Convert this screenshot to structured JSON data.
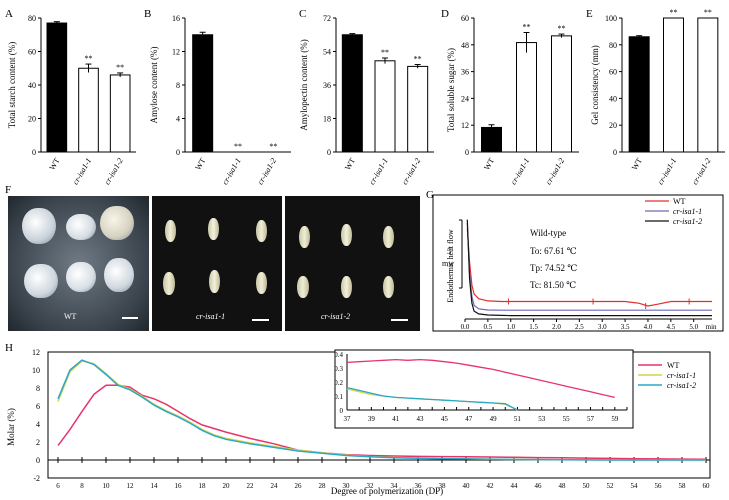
{
  "panels": {
    "A": {
      "letter": "A",
      "ylabel": "Total starch content (%)",
      "yticks": [
        "0",
        "20",
        "40",
        "60",
        "80"
      ],
      "xticks": [
        "WT",
        "cr-isa1-1",
        "cr-isa1-2"
      ],
      "sig": [
        "",
        "**",
        "**"
      ]
    },
    "B": {
      "letter": "B",
      "ylabel": "Amylose content (%)",
      "yticks": [
        "0",
        "4",
        "8",
        "12",
        "16"
      ],
      "xticks": [
        "WT",
        "cr-isa1-1",
        "cr-isa1-2"
      ],
      "sig": [
        "",
        "**",
        "**"
      ]
    },
    "C": {
      "letter": "C",
      "ylabel": "Amylopectin content (%)",
      "yticks": [
        "0",
        "18",
        "36",
        "54",
        "72"
      ],
      "xticks": [
        "WT",
        "cr-isa1-1",
        "cr-isa1-2"
      ],
      "sig": [
        "",
        "**",
        "**"
      ]
    },
    "D": {
      "letter": "D",
      "ylabel": "Total soluble sugar (%)",
      "yticks": [
        "0",
        "12",
        "24",
        "36",
        "48",
        "60"
      ],
      "xticks": [
        "WT",
        "cr-isa1-1",
        "cr-isa1-2"
      ],
      "sig": [
        "",
        "**",
        "**"
      ]
    },
    "E": {
      "letter": "E",
      "ylabel": "Gel consistency (mm)",
      "yticks": [
        "0",
        "20",
        "40",
        "60",
        "80",
        "100"
      ],
      "xticks": [
        "WT",
        "cr-isa1-1",
        "cr-isa1-2"
      ],
      "sig": [
        "",
        "**",
        "**"
      ]
    },
    "F": {
      "letter": "F",
      "captions": [
        "WT",
        "cr-isa1-1",
        "cr-isa1-2"
      ]
    },
    "G": {
      "letter": "G",
      "ylabel": "Endothermic heat flow",
      "scale_label": "5",
      "scale_unit": "mw",
      "annotation": {
        "title": "Wild-type",
        "to": "To: 67.61 ℃",
        "tp": "Tp: 74.52 ℃",
        "tc": "Tc: 81.50 ℃"
      },
      "xticks": [
        "0.0",
        "0.5",
        "1.0",
        "1.5",
        "2.0",
        "2.5",
        "3.0",
        "3.5",
        "4.0",
        "4.5",
        "5.0",
        "min"
      ],
      "legend": [
        "WT",
        "cr-isa1-1",
        "cr-isa1-2"
      ]
    },
    "H": {
      "letter": "H",
      "ylabel": "Molar (%)",
      "xlabel": "Degree of polymerization (DP)",
      "yticks": [
        "-2",
        "0",
        "2",
        "4",
        "6",
        "8",
        "10",
        "12"
      ],
      "xticks": [
        "6",
        "8",
        "10",
        "12",
        "14",
        "16",
        "18",
        "20",
        "22",
        "24",
        "26",
        "28",
        "30",
        "32",
        "34",
        "36",
        "38",
        "40",
        "42",
        "44",
        "46",
        "48",
        "50",
        "52",
        "54",
        "56",
        "58",
        "60"
      ],
      "inset_yticks": [
        "0",
        "0.1",
        "0.2",
        "0.3",
        "0.4"
      ],
      "inset_xticks": [
        "37",
        "39",
        "41",
        "43",
        "45",
        "47",
        "49",
        "51",
        "53",
        "55",
        "57",
        "59"
      ],
      "legend": [
        "WT",
        "cr-isa1-1",
        "cr-isa1-2"
      ]
    }
  },
  "colors": {
    "wt": "#e8336b",
    "isa1": "#d4d44a",
    "isa2": "#2aa7c9",
    "g_wt": "#e0302c",
    "g_isa1": "#6e6ab8",
    "g_isa2": "#111111"
  },
  "chart_data": [
    {
      "type": "bar",
      "title": "",
      "categories": [
        "WT",
        "cr-isa1-1",
        "cr-isa1-2"
      ],
      "values": [
        77,
        50,
        46
      ],
      "errors": [
        0.8,
        2.5,
        1.2
      ],
      "ylabel": "Total starch content (%)",
      "ylim": [
        0,
        80
      ],
      "fills": [
        "#000000",
        "#ffffff",
        "#ffffff"
      ]
    },
    {
      "type": "bar",
      "title": "",
      "categories": [
        "WT",
        "cr-isa1-1",
        "cr-isa1-2"
      ],
      "values": [
        14,
        0,
        0
      ],
      "errors": [
        0.3,
        0,
        0
      ],
      "ylabel": "Amylose content (%)",
      "ylim": [
        0,
        16
      ],
      "fills": [
        "#000000",
        "#ffffff",
        "#ffffff"
      ]
    },
    {
      "type": "bar",
      "title": "",
      "categories": [
        "WT",
        "cr-isa1-1",
        "cr-isa1-2"
      ],
      "values": [
        63,
        49,
        46
      ],
      "errors": [
        0.6,
        1.5,
        1.0
      ],
      "ylabel": "Amylopectin content (%)",
      "ylim": [
        0,
        72
      ],
      "fills": [
        "#000000",
        "#ffffff",
        "#ffffff"
      ]
    },
    {
      "type": "bar",
      "title": "",
      "categories": [
        "WT",
        "cr-isa1-1",
        "cr-isa1-2"
      ],
      "values": [
        11,
        49,
        52
      ],
      "errors": [
        1.2,
        4.5,
        0.8
      ],
      "ylabel": "Total soluble sugar (%)",
      "ylim": [
        0,
        60
      ],
      "fills": [
        "#000000",
        "#ffffff",
        "#ffffff"
      ]
    },
    {
      "type": "bar",
      "title": "",
      "categories": [
        "WT",
        "cr-isa1-1",
        "cr-isa1-2"
      ],
      "values": [
        86,
        100,
        100
      ],
      "errors": [
        0.8,
        0,
        0
      ],
      "ylabel": "Gel consistency (mm)",
      "ylim": [
        0,
        100
      ],
      "fills": [
        "#000000",
        "#ffffff",
        "#ffffff"
      ]
    },
    {
      "type": "line",
      "xlabel": "min",
      "ylabel": "Endothermic heat flow",
      "xlim": [
        0,
        5.4
      ],
      "ylim": [
        0,
        10
      ],
      "series": [
        {
          "name": "WT",
          "x": [
            0.05,
            0.1,
            0.15,
            0.2,
            0.3,
            0.5,
            0.8,
            1.0,
            1.5,
            2.0,
            2.5,
            3.0,
            3.5,
            3.8,
            4.0,
            4.2,
            4.5,
            5.0,
            5.4
          ],
          "y": [
            8.0,
            5.0,
            3.0,
            2.2,
            1.8,
            1.6,
            1.55,
            1.55,
            1.55,
            1.55,
            1.55,
            1.55,
            1.55,
            1.4,
            1.15,
            1.3,
            1.55,
            1.55,
            1.55
          ]
        },
        {
          "name": "cr-isa1-1",
          "x": [
            0.05,
            0.1,
            0.15,
            0.2,
            0.3,
            0.5,
            0.8,
            1.0,
            2.0,
            3.0,
            4.0,
            5.0,
            5.4
          ],
          "y": [
            8.5,
            4.0,
            2.0,
            1.2,
            0.9,
            0.8,
            0.78,
            0.78,
            0.78,
            0.78,
            0.78,
            0.78,
            0.78
          ]
        },
        {
          "name": "cr-isa1-2",
          "x": [
            0.05,
            0.1,
            0.15,
            0.2,
            0.3,
            0.5,
            0.8,
            1.0,
            2.0,
            3.0,
            4.0,
            5.0,
            5.4
          ],
          "y": [
            8.8,
            3.5,
            1.4,
            0.7,
            0.45,
            0.35,
            0.32,
            0.3,
            0.3,
            0.3,
            0.3,
            0.3,
            0.3
          ]
        }
      ]
    },
    {
      "type": "line",
      "xlabel": "Degree of polymerization (DP)",
      "ylabel": "Molar (%)",
      "xlim": [
        6,
        60
      ],
      "ylim": [
        -2,
        12
      ],
      "series": [
        {
          "name": "WT",
          "x": [
            6,
            7,
            8,
            9,
            10,
            11,
            12,
            13,
            14,
            15,
            16,
            17,
            18,
            19,
            20,
            22,
            24,
            26,
            28,
            30,
            32,
            34,
            36,
            38,
            40,
            42,
            44,
            46,
            48,
            50,
            52,
            54,
            56,
            58,
            60
          ],
          "y": [
            1.6,
            3.4,
            5.4,
            7.3,
            8.3,
            8.3,
            8.1,
            7.2,
            6.8,
            6.2,
            5.4,
            4.6,
            3.9,
            3.5,
            3.1,
            2.4,
            1.8,
            1.1,
            0.8,
            0.6,
            0.5,
            0.45,
            0.4,
            0.38,
            0.36,
            0.33,
            0.3,
            0.27,
            0.24,
            0.21,
            0.18,
            0.15,
            0.12,
            0.1,
            0.08
          ]
        },
        {
          "name": "cr-isa1-1",
          "x": [
            6,
            7,
            8,
            9,
            10,
            11,
            12,
            13,
            14,
            15,
            16,
            17,
            18,
            19,
            20,
            22,
            24,
            26,
            28,
            30,
            32,
            34,
            36,
            38,
            40,
            42,
            44,
            46,
            48,
            50,
            52,
            54,
            56,
            58,
            60
          ],
          "y": [
            6.5,
            9.8,
            11.0,
            10.7,
            9.6,
            8.4,
            7.9,
            7.1,
            6.2,
            5.5,
            4.9,
            4.2,
            3.4,
            2.8,
            2.4,
            1.9,
            1.5,
            1.1,
            0.8,
            0.55,
            0.38,
            0.28,
            0.22,
            0.16,
            0.13,
            0.1,
            0.07,
            0.05,
            0.03,
            0.01,
            0.0,
            0.0,
            0.0,
            0.0,
            0.0
          ]
        },
        {
          "name": "cr-isa1-2",
          "x": [
            6,
            7,
            8,
            9,
            10,
            11,
            12,
            13,
            14,
            15,
            16,
            17,
            18,
            19,
            20,
            22,
            24,
            26,
            28,
            30,
            32,
            34,
            36,
            38,
            40,
            42,
            44,
            46,
            48,
            50,
            52,
            54,
            56,
            58,
            60
          ],
          "y": [
            6.8,
            10.0,
            11.1,
            10.6,
            9.5,
            8.3,
            7.8,
            7.0,
            6.1,
            5.4,
            4.8,
            4.1,
            3.3,
            2.7,
            2.3,
            1.8,
            1.4,
            1.0,
            0.75,
            0.5,
            0.35,
            0.26,
            0.2,
            0.15,
            0.12,
            0.09,
            0.06,
            0.04,
            0.02,
            0.01,
            0.0,
            0.0,
            0.0,
            0.0,
            0.0
          ]
        }
      ]
    },
    {
      "type": "line",
      "title": "",
      "xlim": [
        37,
        60
      ],
      "ylim": [
        0,
        0.4
      ],
      "series": [
        {
          "name": "WT",
          "x": [
            37,
            38,
            39,
            40,
            41,
            42,
            43,
            44,
            45,
            46,
            47,
            48,
            49,
            50,
            51,
            52,
            53,
            54,
            55,
            56,
            57,
            58,
            59
          ],
          "y": [
            0.34,
            0.345,
            0.35,
            0.355,
            0.36,
            0.355,
            0.36,
            0.355,
            0.345,
            0.335,
            0.32,
            0.305,
            0.29,
            0.27,
            0.25,
            0.23,
            0.21,
            0.19,
            0.17,
            0.15,
            0.13,
            0.11,
            0.09
          ]
        },
        {
          "name": "cr-isa1-1",
          "x": [
            37,
            38,
            39,
            40,
            41,
            42,
            43,
            44,
            45,
            46,
            47,
            48,
            49,
            50,
            51
          ],
          "y": [
            0.15,
            0.13,
            0.11,
            0.1,
            0.09,
            0.085,
            0.08,
            0.075,
            0.07,
            0.065,
            0.06,
            0.055,
            0.05,
            0.04,
            0.0
          ]
        },
        {
          "name": "cr-isa1-2",
          "x": [
            37,
            38,
            39,
            40,
            41,
            42,
            43,
            44,
            45,
            46,
            47,
            48,
            49,
            50,
            51
          ],
          "y": [
            0.16,
            0.14,
            0.12,
            0.1,
            0.09,
            0.085,
            0.08,
            0.075,
            0.07,
            0.065,
            0.06,
            0.055,
            0.05,
            0.045,
            0.0
          ]
        }
      ]
    }
  ]
}
